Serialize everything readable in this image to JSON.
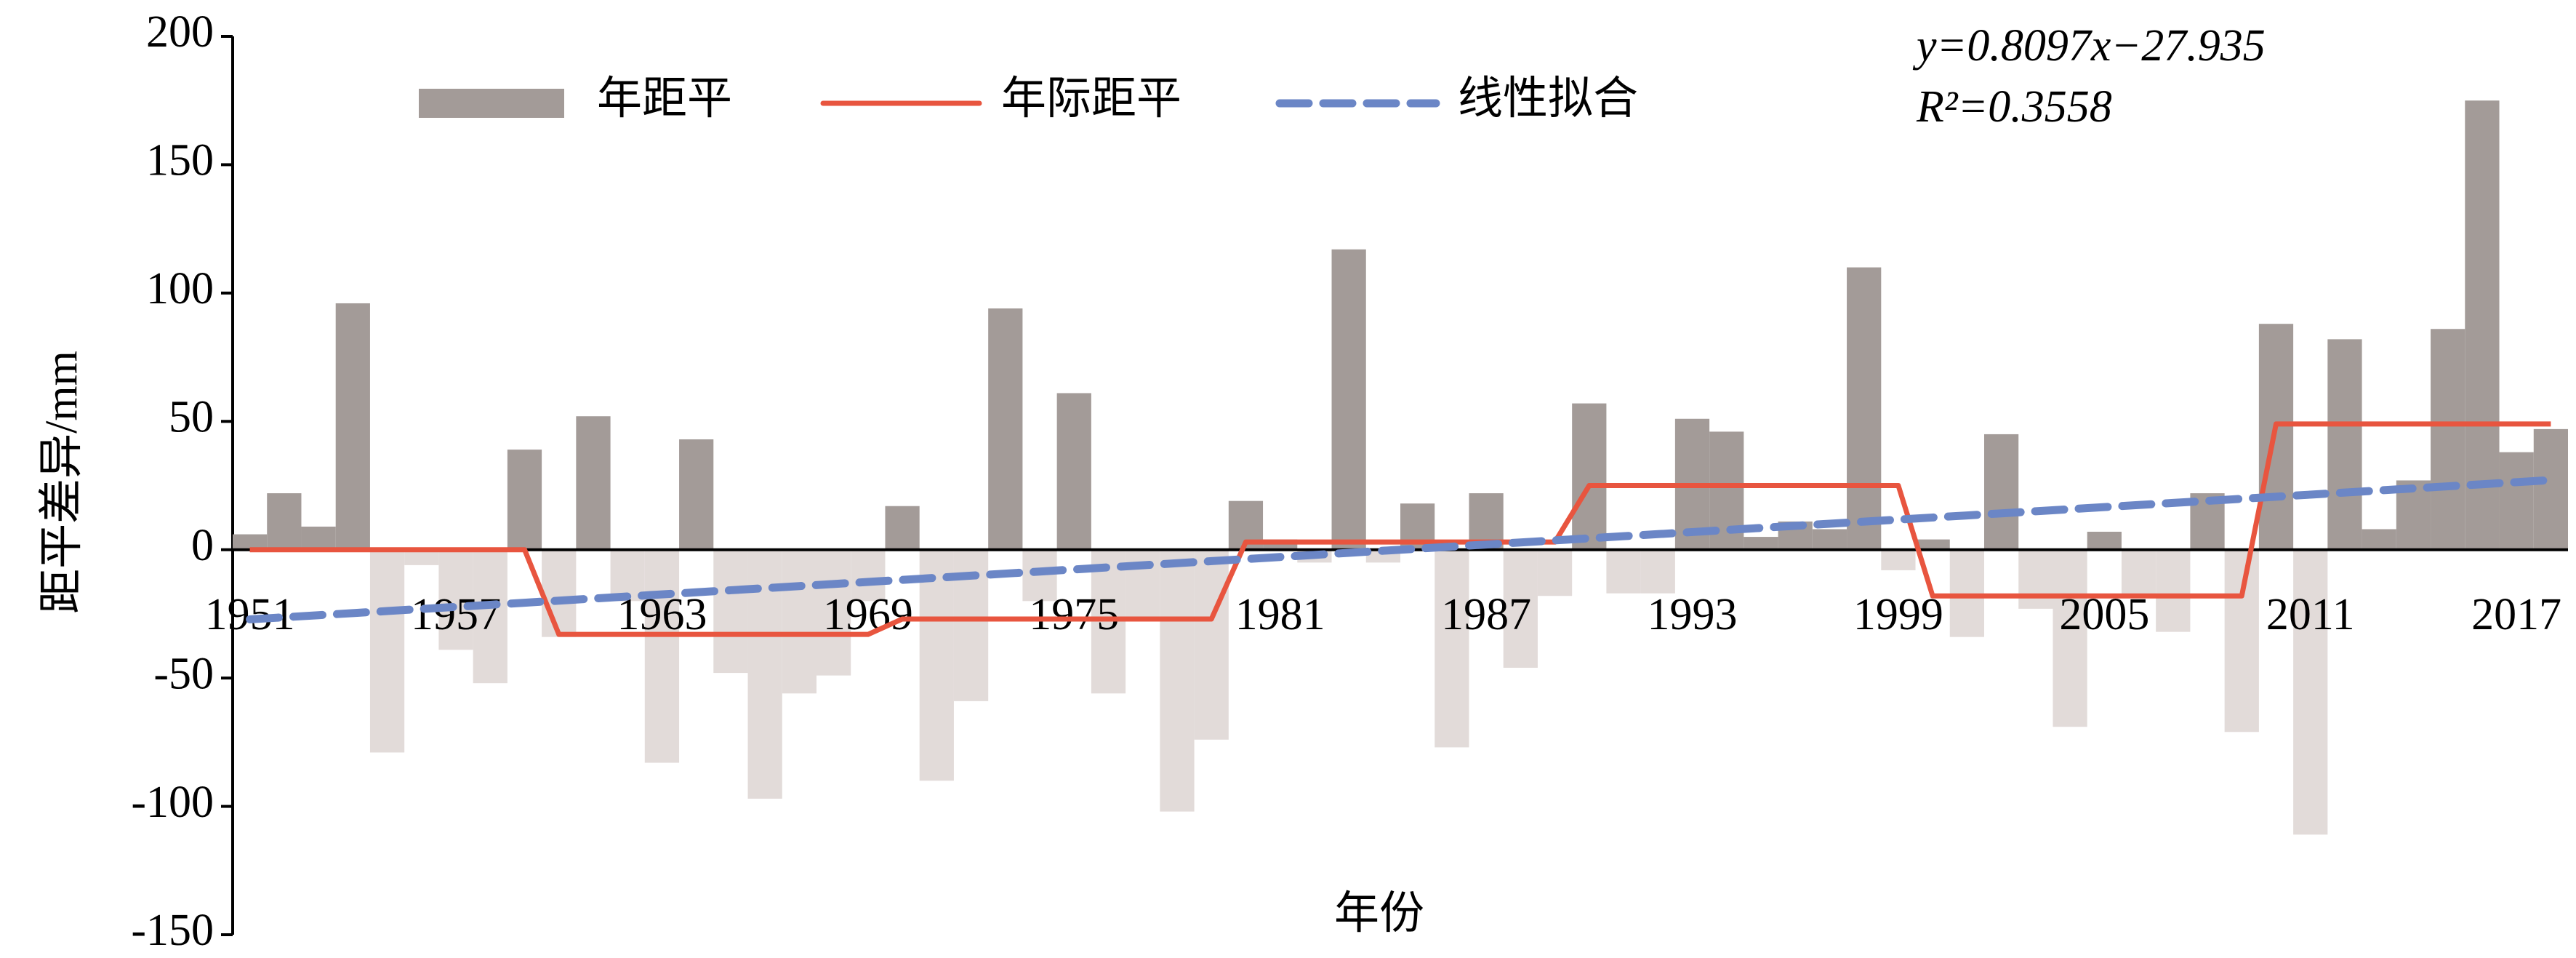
{
  "chart_data": {
    "type": "bar",
    "x_label": "年份",
    "y_label": "距平差异/mm",
    "annotations": [
      "y=0.8097x−27.935",
      "R²=0.3558"
    ],
    "categories": [
      "1951",
      null,
      null,
      null,
      null,
      null,
      "1957",
      null,
      null,
      null,
      null,
      null,
      "1963",
      null,
      null,
      null,
      null,
      null,
      "1969",
      null,
      null,
      null,
      null,
      null,
      "1975",
      null,
      null,
      null,
      null,
      null,
      "1981",
      null,
      null,
      null,
      null,
      null,
      "1987",
      null,
      null,
      null,
      null,
      null,
      "1993",
      null,
      null,
      null,
      null,
      null,
      "1999",
      null,
      null,
      null,
      null,
      null,
      "2005",
      null,
      null,
      null,
      null,
      null,
      "2011",
      null,
      null,
      null,
      null,
      null,
      "2017",
      null
    ],
    "ylim": [
      -150,
      200
    ],
    "yticks": [
      -150,
      -100,
      -50,
      0,
      50,
      100,
      150,
      200
    ],
    "series": [
      {
        "name": "年距平",
        "type": "bar",
        "color": "#a39b98",
        "negative_color": "#e2dbd9",
        "values": [
          6,
          22,
          9,
          96,
          -79,
          -6,
          -39,
          -52,
          39,
          -34,
          52,
          -20,
          -83,
          43,
          -48,
          -97,
          -56,
          -49,
          -20,
          17,
          -90,
          -59,
          94,
          -20,
          61,
          -56,
          -28,
          -102,
          -74,
          19,
          4,
          -5,
          117,
          -5,
          18,
          -77,
          22,
          -46,
          -18,
          57,
          -17,
          -17,
          51,
          46,
          5,
          11,
          8,
          110,
          -8,
          4,
          -34,
          45,
          -23,
          -69,
          7,
          -18,
          -32,
          22,
          -71,
          88,
          -111,
          82,
          8,
          27,
          86,
          175,
          38,
          47
        ]
      },
      {
        "name": "年际距平",
        "type": "line",
        "color": "#e8553f",
        "values": [
          0,
          0,
          0,
          0,
          0,
          0,
          0,
          0,
          0,
          -33,
          -33,
          -33,
          -33,
          -33,
          -33,
          -33,
          -33,
          -33,
          -33,
          -27,
          -27,
          -27,
          -27,
          -27,
          -27,
          -27,
          -27,
          -27,
          -27,
          3,
          3,
          3,
          3,
          3,
          3,
          3,
          3,
          3,
          3,
          25,
          25,
          25,
          25,
          25,
          25,
          25,
          25,
          25,
          25,
          -18,
          -18,
          -18,
          -18,
          -18,
          -18,
          -18,
          -18,
          -18,
          -18,
          49,
          49,
          49,
          49,
          49,
          49,
          49,
          49,
          49
        ]
      },
      {
        "name": "线性拟合",
        "type": "dashed-line",
        "color": "#6b86c6",
        "values": [
          -27.13,
          -26.32,
          -25.51,
          -24.7,
          -23.89,
          -23.08,
          -22.27,
          -21.46,
          -20.65,
          -19.84,
          -19.03,
          -18.22,
          -17.41,
          -16.6,
          -15.79,
          -14.98,
          -14.17,
          -13.36,
          -12.55,
          -11.74,
          -10.93,
          -10.12,
          -9.31,
          -8.5,
          -7.69,
          -6.88,
          -6.07,
          -5.26,
          -4.45,
          -3.64,
          -2.83,
          -2.02,
          -1.21,
          -0.4,
          0.4,
          1.21,
          2.02,
          2.83,
          3.64,
          4.45,
          5.26,
          6.07,
          6.88,
          7.69,
          8.5,
          9.31,
          10.12,
          10.93,
          11.74,
          12.55,
          13.36,
          14.17,
          14.98,
          15.79,
          16.6,
          17.41,
          18.22,
          19.03,
          19.84,
          20.65,
          21.46,
          22.27,
          23.08,
          23.89,
          24.7,
          25.51,
          26.32,
          27.13
        ]
      }
    ],
    "legend": "top"
  }
}
